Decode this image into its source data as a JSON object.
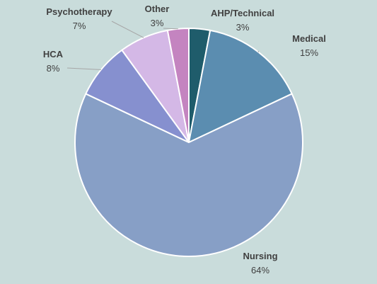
{
  "chart_data": {
    "type": "pie",
    "title": "",
    "start_angle_deg": 0,
    "direction": "clockwise",
    "slices": [
      {
        "label": "AHP/Technical",
        "value": 3,
        "percent_label": "3%",
        "color": "#1f5c6b"
      },
      {
        "label": "Medical",
        "value": 15,
        "percent_label": "15%",
        "color": "#5b8db0"
      },
      {
        "label": "Nursing",
        "value": 64,
        "percent_label": "64%",
        "color": "#879fc6"
      },
      {
        "label": "HCA",
        "value": 8,
        "percent_label": "8%",
        "color": "#8690cf"
      },
      {
        "label": "Psychotherapy",
        "value": 7,
        "percent_label": "7%",
        "color": "#d4b8e6"
      },
      {
        "label": "Other",
        "value": 3,
        "percent_label": "3%",
        "color": "#c484c0"
      }
    ]
  },
  "colors": {
    "background": "#c9dcdb",
    "slice_border": "#ffffff",
    "label_text": "#404040",
    "leader_line": "#a6a6a6"
  }
}
